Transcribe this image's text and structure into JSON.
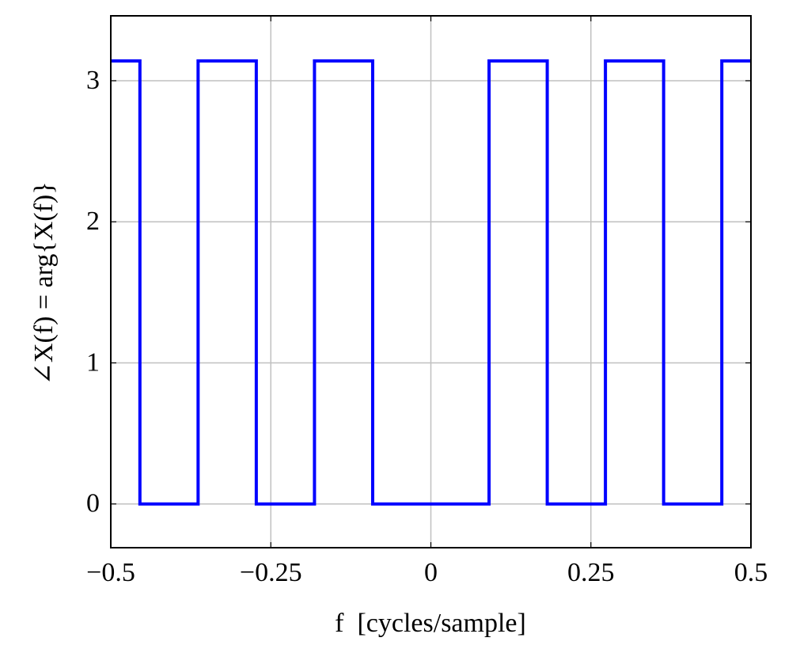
{
  "chart_data": {
    "type": "line",
    "xlabel": "f  [cycles/sample]",
    "ylabel": "∠X(f) = arg{X(f)}",
    "x": [
      -0.5,
      -0.4545,
      -0.4545,
      -0.3636,
      -0.3636,
      -0.2727,
      -0.2727,
      -0.1818,
      -0.1818,
      -0.0909,
      -0.0909,
      0.0909,
      0.0909,
      0.1818,
      0.1818,
      0.2727,
      0.2727,
      0.3636,
      0.3636,
      0.4545,
      0.4545,
      0.5
    ],
    "series": [
      {
        "name": "arg X(f)",
        "color": "#0000ff",
        "values": [
          3.14,
          3.14,
          0,
          0,
          3.14,
          3.14,
          0,
          0,
          3.14,
          3.14,
          0,
          0,
          3.14,
          3.14,
          0,
          0,
          3.14,
          3.14,
          0,
          0,
          3.14,
          3.14
        ]
      }
    ],
    "xlim": [
      -0.5,
      0.5
    ],
    "xticks": [
      {
        "value": -0.5,
        "label": "−0.5"
      },
      {
        "value": -0.25,
        "label": "−0.25"
      },
      0,
      0.25,
      0.5
    ],
    "ylim": [
      -0.31,
      3.46
    ],
    "yticks": [
      0,
      1,
      2,
      3
    ],
    "grid": true
  }
}
